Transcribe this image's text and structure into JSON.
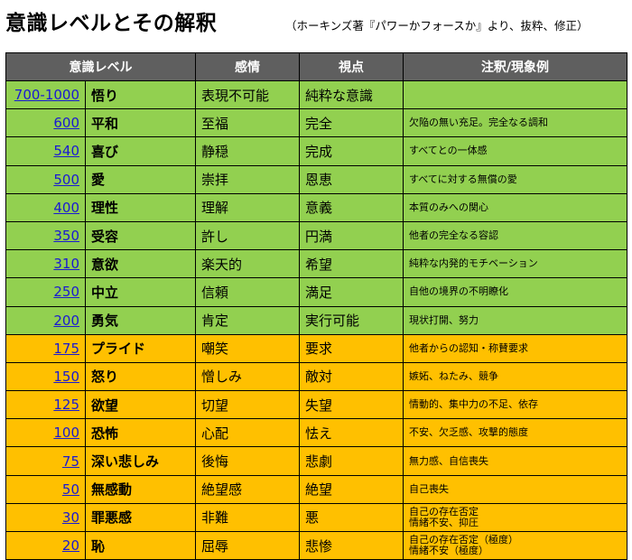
{
  "title": "意識レベルとその解釈",
  "subtitle": "（ホーキンズ著『パワーかフォースか』より、抜粋、修正）",
  "headers": [
    "意識レベル",
    "感情",
    "視点",
    "注釈/現象例"
  ],
  "colors": {
    "header": "#5f5f5f",
    "upper": "#92d050",
    "lower": "#ffc000",
    "link": "#1a1ad2"
  },
  "rows": [
    {
      "level": "700-1000",
      "name": "悟り",
      "emotion": "表現不可能",
      "view": "純粋な意識",
      "note": "",
      "note2": "",
      "group": "g"
    },
    {
      "level": "600",
      "name": "平和",
      "emotion": "至福",
      "view": "完全",
      "note": "欠陥の無い充足。完全なる調和",
      "note2": "",
      "group": "g"
    },
    {
      "level": "540",
      "name": "喜び",
      "emotion": "静穏",
      "view": "完成",
      "note": "すべてとの一体感",
      "note2": "",
      "group": "g"
    },
    {
      "level": "500",
      "name": "愛",
      "emotion": "崇拝",
      "view": "恩恵",
      "note": "すべてに対する無償の愛",
      "note2": "",
      "group": "g"
    },
    {
      "level": "400",
      "name": "理性",
      "emotion": "理解",
      "view": "意義",
      "note": "本質のみへの関心",
      "note2": "",
      "group": "g"
    },
    {
      "level": "350",
      "name": "受容",
      "emotion": "許し",
      "view": "円満",
      "note": "他者の完全なる容認",
      "note2": "",
      "group": "g"
    },
    {
      "level": "310",
      "name": "意欲",
      "emotion": "楽天的",
      "view": "希望",
      "note": "純粋な内発的モチベーション",
      "note2": "",
      "group": "g"
    },
    {
      "level": "250",
      "name": "中立",
      "emotion": "信頼",
      "view": "満足",
      "note": "自他の境界の不明瞭化",
      "note2": "",
      "group": "g"
    },
    {
      "level": "200",
      "name": "勇気",
      "emotion": "肯定",
      "view": "実行可能",
      "note": "現状打開、努力",
      "note2": "",
      "group": "g"
    },
    {
      "level": "175",
      "name": "プライド",
      "emotion": "嘲笑",
      "view": "要求",
      "note": "他者からの認知・称賛要求",
      "note2": "",
      "group": "o"
    },
    {
      "level": "150",
      "name": "怒り",
      "emotion": "憎しみ",
      "view": "敵対",
      "note": "嫉妬、ねたみ、競争",
      "note2": "",
      "group": "o"
    },
    {
      "level": "125",
      "name": "欲望",
      "emotion": "切望",
      "view": "失望",
      "note": "情動的、集中力の不足、依存",
      "note2": "",
      "group": "o"
    },
    {
      "level": "100",
      "name": "恐怖",
      "emotion": "心配",
      "view": "怯え",
      "note": "不安、欠乏感、攻撃的態度",
      "note2": "",
      "group": "o"
    },
    {
      "level": "75",
      "name": "深い悲しみ",
      "emotion": "後悔",
      "view": "悲劇",
      "note": "無力感、自信喪失",
      "note2": "",
      "group": "o"
    },
    {
      "level": "50",
      "name": "無感動",
      "emotion": "絶望感",
      "view": "絶望",
      "note": "自己喪失",
      "note2": "",
      "group": "o"
    },
    {
      "level": "30",
      "name": "罪悪感",
      "emotion": "非難",
      "view": "悪",
      "note": "自己の存在否定",
      "note2": "情緒不安、抑圧",
      "group": "o"
    },
    {
      "level": "20",
      "name": "恥",
      "emotion": "屈辱",
      "view": "悲惨",
      "note": "自己の存在否定（極度）",
      "note2": "情緒不安（極度）",
      "group": "o"
    }
  ]
}
